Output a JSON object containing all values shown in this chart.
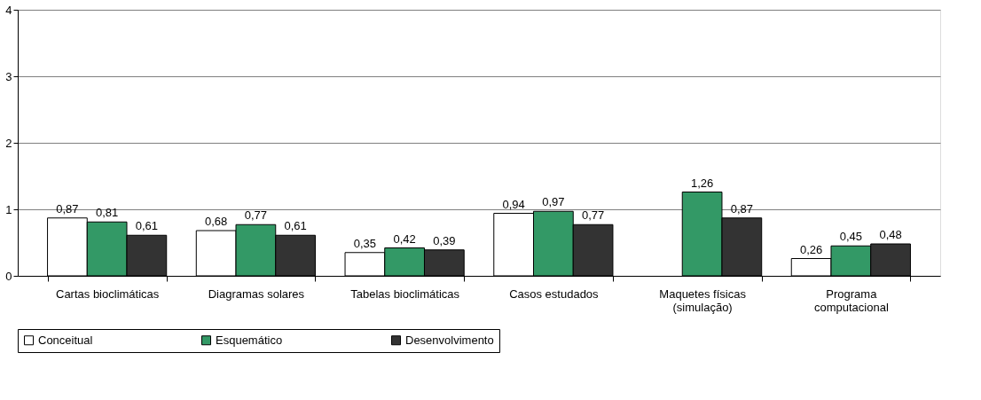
{
  "chart_data": {
    "type": "bar",
    "categories": [
      "Cartas bioclimáticas",
      "Diagramas solares",
      "Tabelas bioclimáticas",
      "Casos estudados",
      "Maquetes físicas\n(simulação)",
      "Programa\ncomputacional"
    ],
    "series": [
      {
        "name": "Conceitual",
        "color": "#ffffff",
        "values": [
          0.87,
          0.68,
          0.35,
          0.94,
          null,
          0.26
        ],
        "value_labels": [
          "0,87",
          "0,68",
          "0,35",
          "0,94",
          null,
          "0,26"
        ]
      },
      {
        "name": "Esquemático",
        "color": "#339966",
        "values": [
          0.81,
          0.77,
          0.42,
          0.97,
          1.26,
          0.45
        ],
        "value_labels": [
          "0,81",
          "0,77",
          "0,42",
          "0,97",
          "1,26",
          "0,45"
        ]
      },
      {
        "name": "Desenvolvimento",
        "color": "#333333",
        "values": [
          0.61,
          0.61,
          0.39,
          0.77,
          0.87,
          0.48
        ],
        "value_labels": [
          "0,61",
          "0,61",
          "0,39",
          "0,77",
          "0,87",
          "0,48"
        ]
      }
    ],
    "ylim": [
      0,
      4
    ],
    "yticks": [
      0,
      1,
      2,
      3,
      4
    ],
    "grid": "y",
    "legend": "bottom left"
  }
}
